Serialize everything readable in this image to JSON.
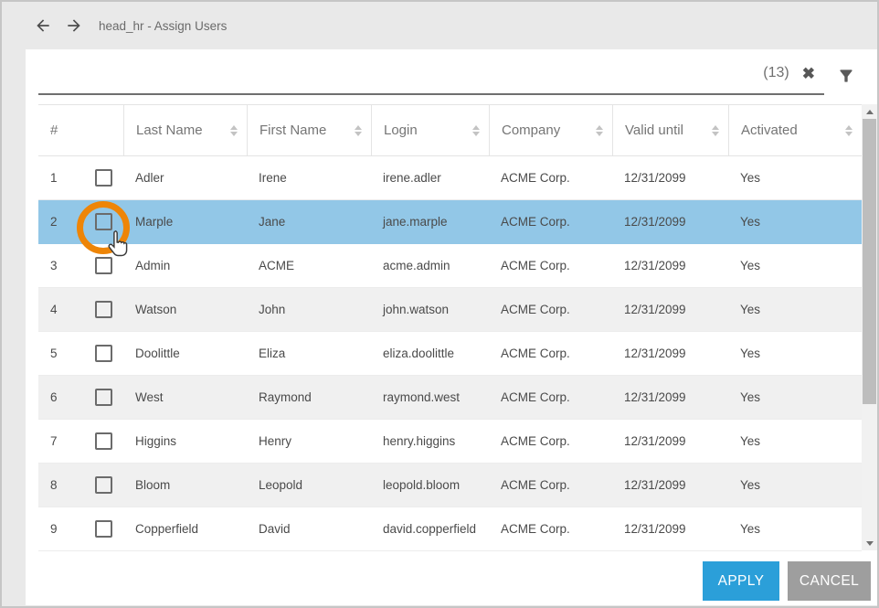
{
  "window": {
    "title": "head_hr - Assign Users"
  },
  "filter": {
    "search_value": "",
    "result_count": "(13)",
    "clear_icon": "✖",
    "filter_icon_name": "funnel-filter-icon"
  },
  "table": {
    "columns": [
      {
        "label": "#",
        "sortable": false
      },
      {
        "label": "Last Name",
        "sortable": true
      },
      {
        "label": "First Name",
        "sortable": true
      },
      {
        "label": "Login",
        "sortable": true
      },
      {
        "label": "Company",
        "sortable": true
      },
      {
        "label": "Valid until",
        "sortable": true
      },
      {
        "label": "Activated",
        "sortable": true
      }
    ],
    "rows": [
      {
        "num": "1",
        "checked": false,
        "last_name": "Adler",
        "first_name": "Irene",
        "login": "irene.adler",
        "company": "ACME Corp.",
        "valid_until": "12/31/2099",
        "activated": "Yes"
      },
      {
        "num": "2",
        "checked": false,
        "last_name": "Marple",
        "first_name": "Jane",
        "login": "jane.marple",
        "company": "ACME Corp.",
        "valid_until": "12/31/2099",
        "activated": "Yes"
      },
      {
        "num": "3",
        "checked": false,
        "last_name": "Admin",
        "first_name": "ACME",
        "login": "acme.admin",
        "company": "ACME Corp.",
        "valid_until": "12/31/2099",
        "activated": "Yes"
      },
      {
        "num": "4",
        "checked": false,
        "last_name": "Watson",
        "first_name": "John",
        "login": "john.watson",
        "company": "ACME Corp.",
        "valid_until": "12/31/2099",
        "activated": "Yes"
      },
      {
        "num": "5",
        "checked": false,
        "last_name": "Doolittle",
        "first_name": "Eliza",
        "login": "eliza.doolittle",
        "company": "ACME Corp.",
        "valid_until": "12/31/2099",
        "activated": "Yes"
      },
      {
        "num": "6",
        "checked": false,
        "last_name": "West",
        "first_name": "Raymond",
        "login": "raymond.west",
        "company": "ACME Corp.",
        "valid_until": "12/31/2099",
        "activated": "Yes"
      },
      {
        "num": "7",
        "checked": false,
        "last_name": "Higgins",
        "first_name": "Henry",
        "login": "henry.higgins",
        "company": "ACME Corp.",
        "valid_until": "12/31/2099",
        "activated": "Yes"
      },
      {
        "num": "8",
        "checked": false,
        "last_name": "Bloom",
        "first_name": "Leopold",
        "login": "leopold.bloom",
        "company": "ACME Corp.",
        "valid_until": "12/31/2099",
        "activated": "Yes"
      },
      {
        "num": "9",
        "checked": false,
        "last_name": "Copperfield",
        "first_name": "David",
        "login": "david.copperfield",
        "company": "ACME Corp.",
        "valid_until": "12/31/2099",
        "activated": "Yes"
      }
    ],
    "selected_row_index": 1,
    "striped_row_numbers": [
      "4",
      "6",
      "8"
    ]
  },
  "click_highlight": {
    "target": "row-2-checkbox",
    "ring_color": "#ee8507",
    "cursor": "hand-pointer"
  },
  "buttons": {
    "apply": "APPLY",
    "cancel": "CANCEL"
  },
  "colors": {
    "selected_row": "#92c7e7",
    "apply_button": "#2b9fd9",
    "cancel_button": "#9e9e9e",
    "header_bg": "#e9e9e9",
    "stripe_row": "#f0f0f0",
    "highlight_ring": "#ee8507"
  }
}
